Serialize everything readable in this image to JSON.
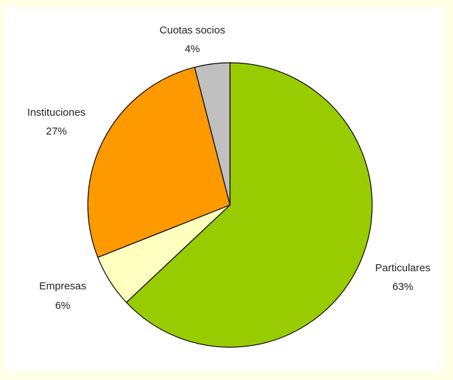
{
  "chart_data": {
    "type": "pie",
    "title": "",
    "start": "12 o'clock",
    "direction": "clockwise",
    "slices": [
      {
        "name": "Particulares",
        "label": "63%",
        "value": 63,
        "color": "#99cc00"
      },
      {
        "name": "Empresas",
        "label": "6%",
        "value": 6,
        "color": "#ffffc0"
      },
      {
        "name": "Instituciones",
        "label": "27%",
        "value": 27,
        "color": "#ff9900"
      },
      {
        "name": "Cuotas socios",
        "label": "4%",
        "value": 4,
        "color": "#c0c0c0"
      }
    ]
  }
}
